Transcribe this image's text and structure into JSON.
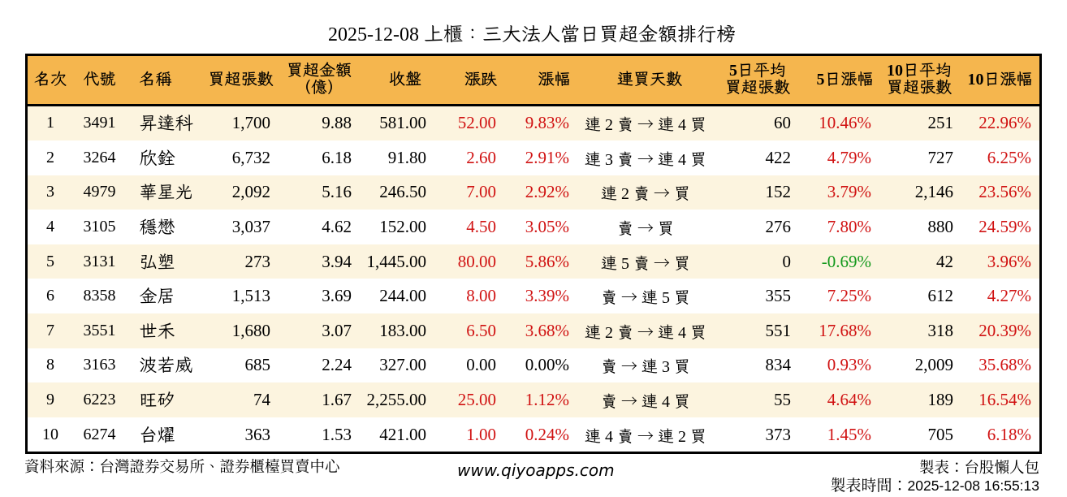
{
  "chart_data": {
    "type": "table",
    "title": "2025-12-08 上櫃：三大法人當日買超金額排行榜",
    "columns": [
      "名次",
      "代號",
      "名稱",
      "買超張數",
      "買超金額\n（億）",
      "收盤",
      "漲跌",
      "漲幅",
      "連買天數",
      "5日平均\n買超張數",
      "5日漲幅",
      "10日平均\n買超張數",
      "10日漲幅"
    ],
    "rows": [
      [
        "1",
        "3491",
        "昇達科",
        "1,700",
        "9.88",
        "581.00",
        "52.00",
        "9.83%",
        "連 2 賣 → 連 4 買",
        "60",
        "10.46%",
        "251",
        "22.96%"
      ],
      [
        "2",
        "3264",
        "欣銓",
        "6,732",
        "6.18",
        "91.80",
        "2.60",
        "2.91%",
        "連 3 賣 → 連 4 買",
        "422",
        "4.79%",
        "727",
        "6.25%"
      ],
      [
        "3",
        "4979",
        "華星光",
        "2,092",
        "5.16",
        "246.50",
        "7.00",
        "2.92%",
        "連 2 賣 → 買",
        "152",
        "3.79%",
        "2,146",
        "23.56%"
      ],
      [
        "4",
        "3105",
        "穩懋",
        "3,037",
        "4.62",
        "152.00",
        "4.50",
        "3.05%",
        "賣 → 買",
        "276",
        "7.80%",
        "880",
        "24.59%"
      ],
      [
        "5",
        "3131",
        "弘塑",
        "273",
        "3.94",
        "1,445.00",
        "80.00",
        "5.86%",
        "連 5 賣 → 買",
        "0",
        "-0.69%",
        "42",
        "3.96%"
      ],
      [
        "6",
        "8358",
        "金居",
        "1,513",
        "3.69",
        "244.00",
        "8.00",
        "3.39%",
        "賣 → 連 5 買",
        "355",
        "7.25%",
        "612",
        "4.27%"
      ],
      [
        "7",
        "3551",
        "世禾",
        "1,680",
        "3.07",
        "183.00",
        "6.50",
        "3.68%",
        "連 2 賣 → 連 4 買",
        "551",
        "17.68%",
        "318",
        "20.39%"
      ],
      [
        "8",
        "3163",
        "波若威",
        "685",
        "2.24",
        "327.00",
        "0.00",
        "0.00%",
        "賣 → 連 3 買",
        "834",
        "0.93%",
        "2,009",
        "35.68%"
      ],
      [
        "9",
        "6223",
        "旺矽",
        "74",
        "1.67",
        "2,255.00",
        "25.00",
        "1.12%",
        "賣 → 連 4 買",
        "55",
        "4.64%",
        "189",
        "16.54%"
      ],
      [
        "10",
        "6274",
        "台燿",
        "363",
        "1.53",
        "421.00",
        "1.00",
        "0.24%",
        "連 4 賣 → 連 2 買",
        "373",
        "1.45%",
        "705",
        "6.18%"
      ]
    ]
  },
  "footer": {
    "source": "資料來源：台灣證券交易所、證券櫃檯買賣中心",
    "website": "www.qiyoapps.com",
    "maker": "製表：台股懶人包",
    "made_at_label": "製表時間：",
    "made_at_value": "2025-12-08 16:55:13"
  },
  "colors": {
    "header_bg": "#F5B64E",
    "row_stripe_bg": "#FCF4DF",
    "up_red": "#D01111",
    "down_green": "#12981B",
    "border": "#000000",
    "text": "#000000"
  }
}
